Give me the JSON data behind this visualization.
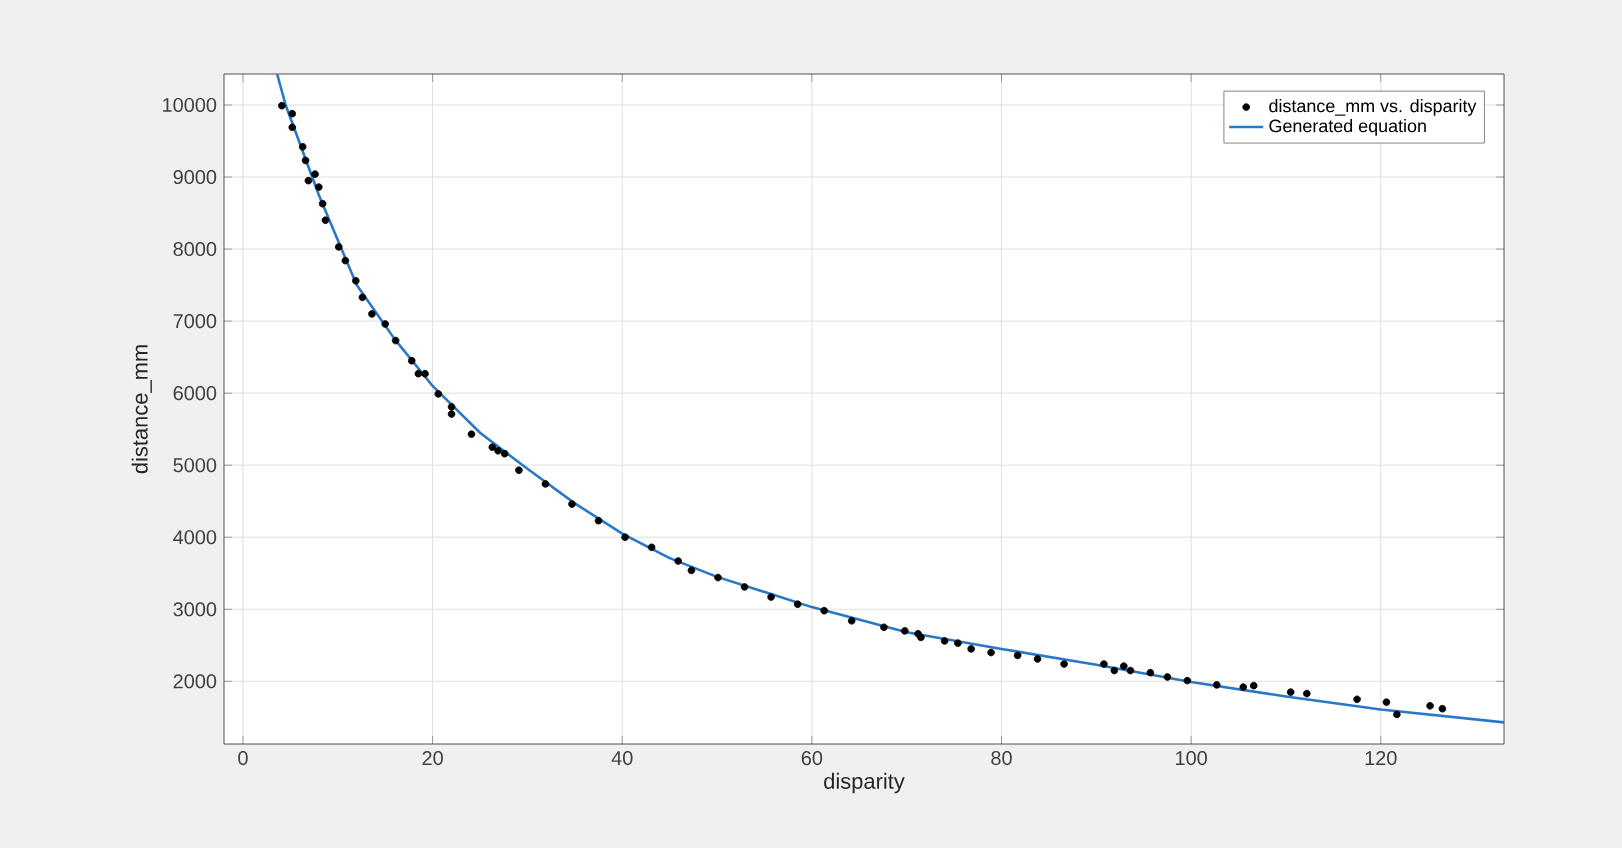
{
  "chart_data": {
    "type": "scatter",
    "xlabel": "disparity",
    "ylabel": "distance_mm",
    "xlim": [
      -2,
      133
    ],
    "ylim": [
      1130,
      10430
    ],
    "xticks": [
      0,
      20,
      40,
      60,
      80,
      100,
      120
    ],
    "yticks": [
      2000,
      3000,
      4000,
      5000,
      6000,
      7000,
      8000,
      9000,
      10000
    ],
    "grid": true,
    "legend": "top right",
    "series": [
      {
        "name": "distance_mm vs. disparity",
        "marker": "circle",
        "color": "#000000",
        "x": [
          4.1,
          5.2,
          5.2,
          6.3,
          6.6,
          7.6,
          6.9,
          8.0,
          8.4,
          8.7,
          10.1,
          10.8,
          11.9,
          12.6,
          13.6,
          15.0,
          16.1,
          17.8,
          18.5,
          19.2,
          20.6,
          22.0,
          22.0,
          24.1,
          26.3,
          26.9,
          27.6,
          29.1,
          31.9,
          34.7,
          37.5,
          40.3,
          43.1,
          45.9,
          47.3,
          50.1,
          52.9,
          55.7,
          58.5,
          61.3,
          64.2,
          67.6,
          69.8,
          71.2,
          71.5,
          74.0,
          75.4,
          76.8,
          78.9,
          81.7,
          83.8,
          86.6,
          90.8,
          91.9,
          92.9,
          93.6,
          95.7,
          97.5,
          99.6,
          102.7,
          105.5,
          106.6,
          110.5,
          112.2,
          117.5,
          120.6,
          121.7,
          125.2,
          126.5
        ],
        "values": [
          9990,
          9880,
          9690,
          9420,
          9230,
          9040,
          8950,
          8860,
          8630,
          8400,
          8030,
          7840,
          7560,
          7330,
          7100,
          6960,
          6730,
          6450,
          6270,
          6270,
          5990,
          5810,
          5710,
          5430,
          5250,
          5200,
          5160,
          4930,
          4740,
          4460,
          4230,
          4000,
          3860,
          3670,
          3540,
          3440,
          3310,
          3170,
          3070,
          2980,
          2840,
          2750,
          2700,
          2660,
          2610,
          2560,
          2530,
          2450,
          2400,
          2360,
          2310,
          2240,
          2240,
          2150,
          2210,
          2150,
          2120,
          2060,
          2010,
          1950,
          1920,
          1940,
          1850,
          1830,
          1750,
          1710,
          1540,
          1660,
          1620
        ]
      },
      {
        "name": "Generated equation",
        "type": "line",
        "marker": "none",
        "line_style": "solid",
        "color": "#2878c8",
        "x": [
          3.6,
          4.5,
          8,
          12,
          16,
          20,
          25,
          30,
          35,
          40,
          45,
          50,
          60,
          70,
          80,
          90,
          100,
          110,
          120,
          133
        ],
        "values": [
          10430,
          10000,
          8750,
          7500,
          6750,
          6100,
          5450,
          4950,
          4470,
          4050,
          3710,
          3450,
          3030,
          2680,
          2450,
          2230,
          1990,
          1790,
          1610,
          1430
        ]
      }
    ]
  }
}
